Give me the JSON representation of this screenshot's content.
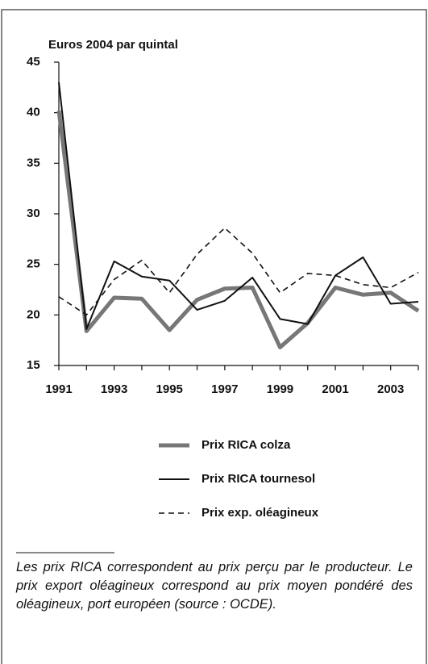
{
  "chart_data": {
    "type": "line",
    "y_label": "Euros 2004 par quintal",
    "x": [
      1991,
      1992,
      1993,
      1994,
      1995,
      1996,
      1997,
      1998,
      1999,
      2000,
      2001,
      2002,
      2003,
      2004
    ],
    "xlim": [
      1991,
      2004
    ],
    "xticks": [
      1991,
      1993,
      1995,
      1997,
      1999,
      2001,
      2003
    ],
    "ylim": [
      15,
      45
    ],
    "yticks": [
      15,
      20,
      25,
      30,
      35,
      40,
      45
    ],
    "grid": false,
    "series": [
      {
        "name": "Prix RICA colza",
        "color": "#777777",
        "style": "thick",
        "values": [
          40.2,
          18.4,
          21.7,
          21.6,
          18.5,
          21.5,
          22.6,
          22.7,
          16.8,
          19.2,
          22.7,
          22.0,
          22.2,
          20.4
        ]
      },
      {
        "name": "Prix RICA tournesol",
        "color": "#111111",
        "style": "solid",
        "values": [
          43.0,
          18.6,
          25.3,
          23.8,
          23.4,
          20.5,
          21.4,
          23.7,
          19.6,
          19.1,
          23.9,
          25.7,
          21.1,
          21.3
        ]
      },
      {
        "name": "Prix exp. oléagineux",
        "color": "#111111",
        "style": "dashed",
        "values": [
          21.8,
          20.0,
          23.5,
          25.4,
          22.2,
          26.0,
          28.6,
          26.1,
          22.2,
          24.1,
          23.9,
          23.0,
          22.7,
          24.2
        ]
      }
    ],
    "note": "Les prix RICA correspondent au prix perçu par le producteur. Le prix export oléagineux correspond au prix moyen pondéré des oléagineux, port européen (source : OCDE)."
  }
}
